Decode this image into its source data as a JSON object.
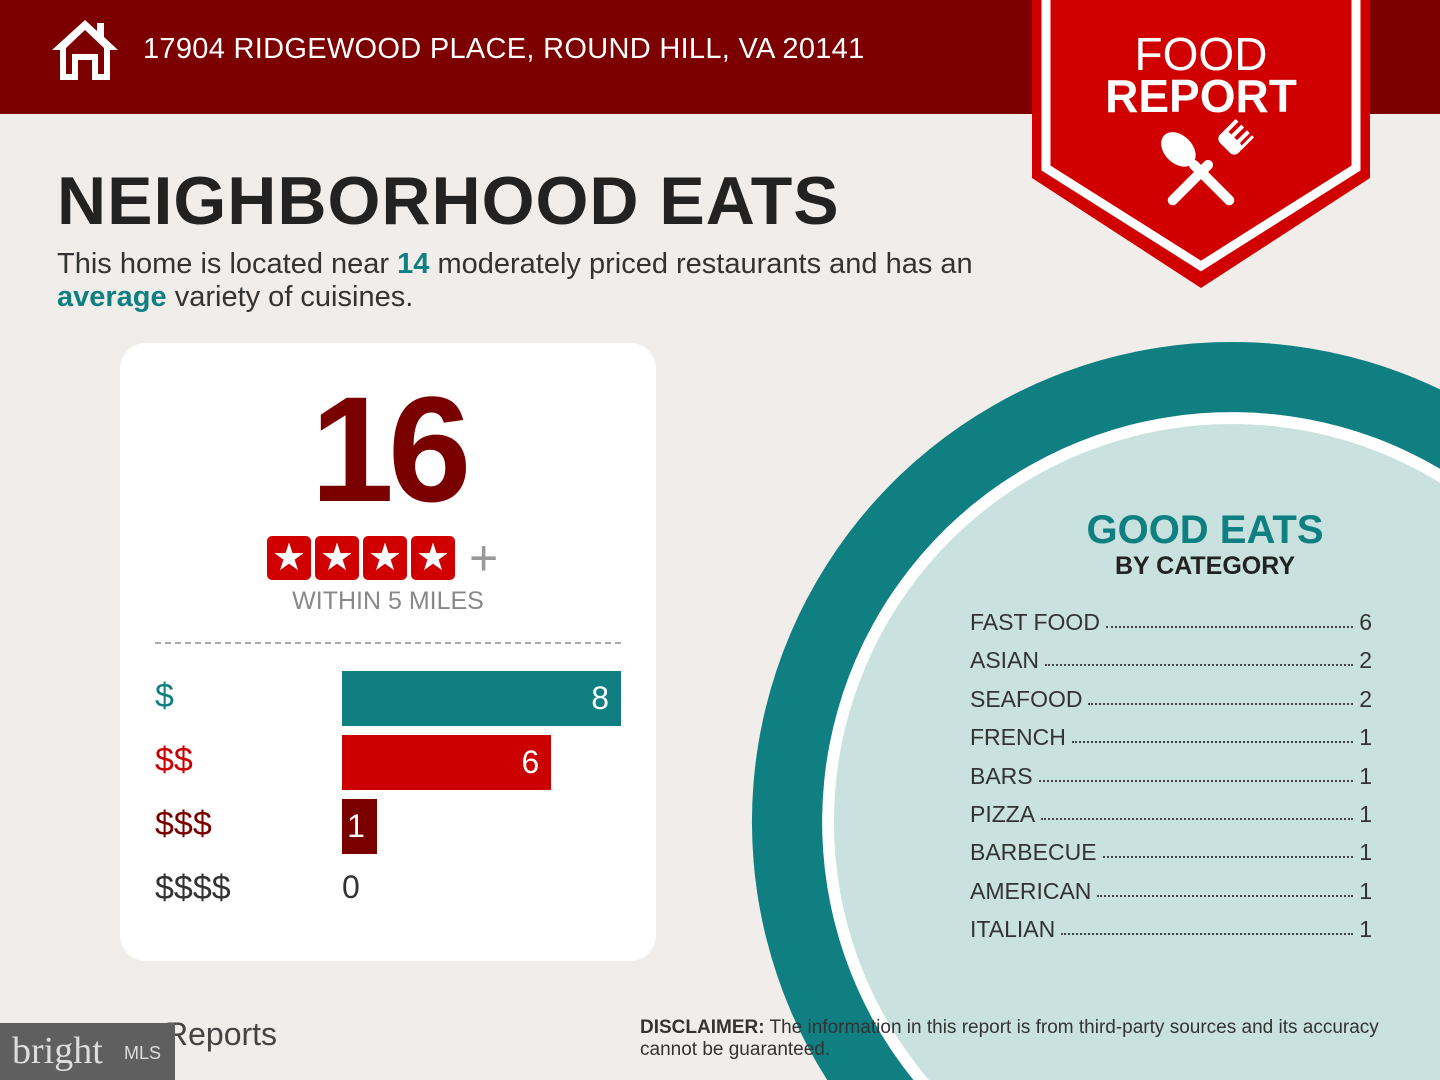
{
  "header": {
    "address": "17904 RIDGEWOOD PLACE, ROUND HILL, VA 20141",
    "icon": "home-icon"
  },
  "badge": {
    "line1": "FOOD",
    "line2": "REPORT",
    "icon": "spoon-fork-icon"
  },
  "title": "NEIGHBORHOOD EATS",
  "summary": {
    "pre": "This home is located near ",
    "count": "14",
    "mid": " moderately priced restaurants and has an ",
    "variety": "average",
    "post": " variety of cuisines."
  },
  "card": {
    "count": "16",
    "stars": 4,
    "plus": "+",
    "radius_label": "WITHIN 5 MILES"
  },
  "colors": {
    "dark_red": "#7d0000",
    "red": "#d10000",
    "teal": "#0f7f82",
    "light_teal": "#c9e2e0"
  },
  "chart_data": {
    "type": "bar",
    "orientation": "horizontal",
    "categories": [
      "$",
      "$$",
      "$$$",
      "$$$$"
    ],
    "values": [
      8,
      6,
      1,
      0
    ],
    "xlim": [
      0,
      8
    ]
  },
  "price_bars": [
    {
      "label": "$",
      "value": "8",
      "color": "#0f7f82"
    },
    {
      "label": "$$",
      "value": "6",
      "color": "#cc0000"
    },
    {
      "label": "$$$",
      "value": "1",
      "color": "#7a0000"
    },
    {
      "label": "$$$$",
      "value": "0",
      "color": "#333333"
    }
  ],
  "good_eats": {
    "title": "GOOD EATS",
    "subtitle": "BY CATEGORY",
    "categories": [
      {
        "name": "FAST FOOD",
        "count": "6"
      },
      {
        "name": "ASIAN",
        "count": "2"
      },
      {
        "name": "SEAFOOD",
        "count": "2"
      },
      {
        "name": "FRENCH",
        "count": "1"
      },
      {
        "name": "BARS",
        "count": "1"
      },
      {
        "name": "PIZZA",
        "count": "1"
      },
      {
        "name": "BARBECUE",
        "count": "1"
      },
      {
        "name": "AMERICAN",
        "count": "1"
      },
      {
        "name": "ITALIAN",
        "count": "1"
      }
    ]
  },
  "footer": {
    "disclaimer_label": "DISCLAIMER:",
    "disclaimer": " The information in this report is from third-party sources and its accuracy cannot be guaranteed.",
    "reports_text": "Reports",
    "logo": "bright MLS"
  }
}
